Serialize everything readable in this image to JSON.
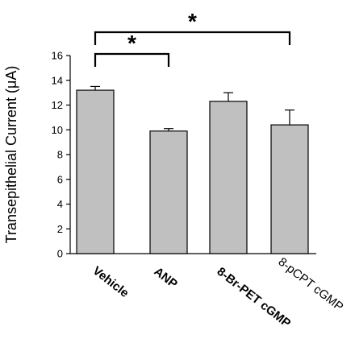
{
  "chart_data": {
    "type": "bar",
    "categories": [
      "Vehicle",
      "ANP",
      "8-Br-PET cGMP",
      "8-pCPT cGMP"
    ],
    "category_bold": [
      true,
      true,
      true,
      false
    ],
    "values": [
      13.2,
      9.9,
      12.3,
      10.4
    ],
    "errors": [
      0.3,
      0.2,
      0.7,
      1.2
    ],
    "ylabel": "Transepithelial Current (μA)",
    "ylim": [
      0,
      16
    ],
    "yticks": [
      "0",
      "2",
      "4",
      "6",
      "8",
      "10",
      "12",
      "14",
      "16"
    ],
    "bar_color": "#c0c0c0",
    "significance": [
      {
        "from": "Vehicle",
        "to": "ANP",
        "label": "*"
      },
      {
        "from": "Vehicle",
        "to": "8-pCPT cGMP",
        "label": "*"
      }
    ],
    "grid": false,
    "legend": "none"
  }
}
